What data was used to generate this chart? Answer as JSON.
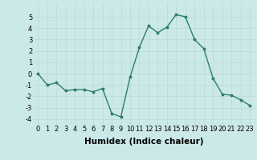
{
  "x": [
    0,
    1,
    2,
    3,
    4,
    5,
    6,
    7,
    8,
    9,
    10,
    11,
    12,
    13,
    14,
    15,
    16,
    17,
    18,
    19,
    20,
    21,
    22,
    23
  ],
  "y": [
    0,
    -1,
    -0.8,
    -1.5,
    -1.4,
    -1.4,
    -1.6,
    -1.3,
    -3.5,
    -3.8,
    -0.3,
    2.3,
    4.2,
    3.6,
    4.1,
    5.2,
    5.0,
    3.0,
    2.2,
    -0.4,
    -1.8,
    -1.9,
    -2.3,
    -2.8
  ],
  "line_color": "#2e7d6e",
  "marker": "o",
  "marker_size": 1.8,
  "line_width": 1.0,
  "bg_color": "#cce9e9",
  "grid_color": "#b8d8d8",
  "xlabel": "Humidex (Indice chaleur)",
  "xlabel_fontsize": 7.5,
  "xlabel_fontweight": "bold",
  "tick_fontsize": 6,
  "ylim": [
    -4.5,
    6.2
  ],
  "xlim": [
    -0.5,
    23.5
  ],
  "yticks": [
    -4,
    -3,
    -2,
    -1,
    0,
    1,
    2,
    3,
    4,
    5
  ],
  "xticks": [
    0,
    1,
    2,
    3,
    4,
    5,
    6,
    7,
    8,
    9,
    10,
    11,
    12,
    13,
    14,
    15,
    16,
    17,
    18,
    19,
    20,
    21,
    22,
    23
  ]
}
